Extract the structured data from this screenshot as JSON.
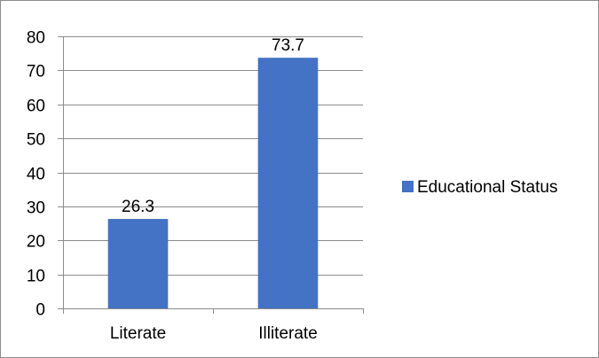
{
  "chart_data": {
    "type": "bar",
    "title": "",
    "xlabel": "",
    "ylabel": "",
    "categories": [
      "Literate",
      "Illiterate"
    ],
    "series": [
      {
        "name": "Educational Status",
        "values": [
          26.3,
          73.7
        ],
        "color": "#4472c4"
      }
    ],
    "data_labels": [
      "26.3",
      "73.7"
    ],
    "ylim": [
      0,
      80
    ],
    "yticks": [
      0,
      10,
      20,
      30,
      40,
      50,
      60,
      70,
      80
    ],
    "ytick_labels": [
      "0",
      "10",
      "20",
      "30",
      "40",
      "50",
      "60",
      "70",
      "80"
    ],
    "grid": true,
    "gridline_color": "#8c8c8c",
    "legend_position": "right"
  }
}
